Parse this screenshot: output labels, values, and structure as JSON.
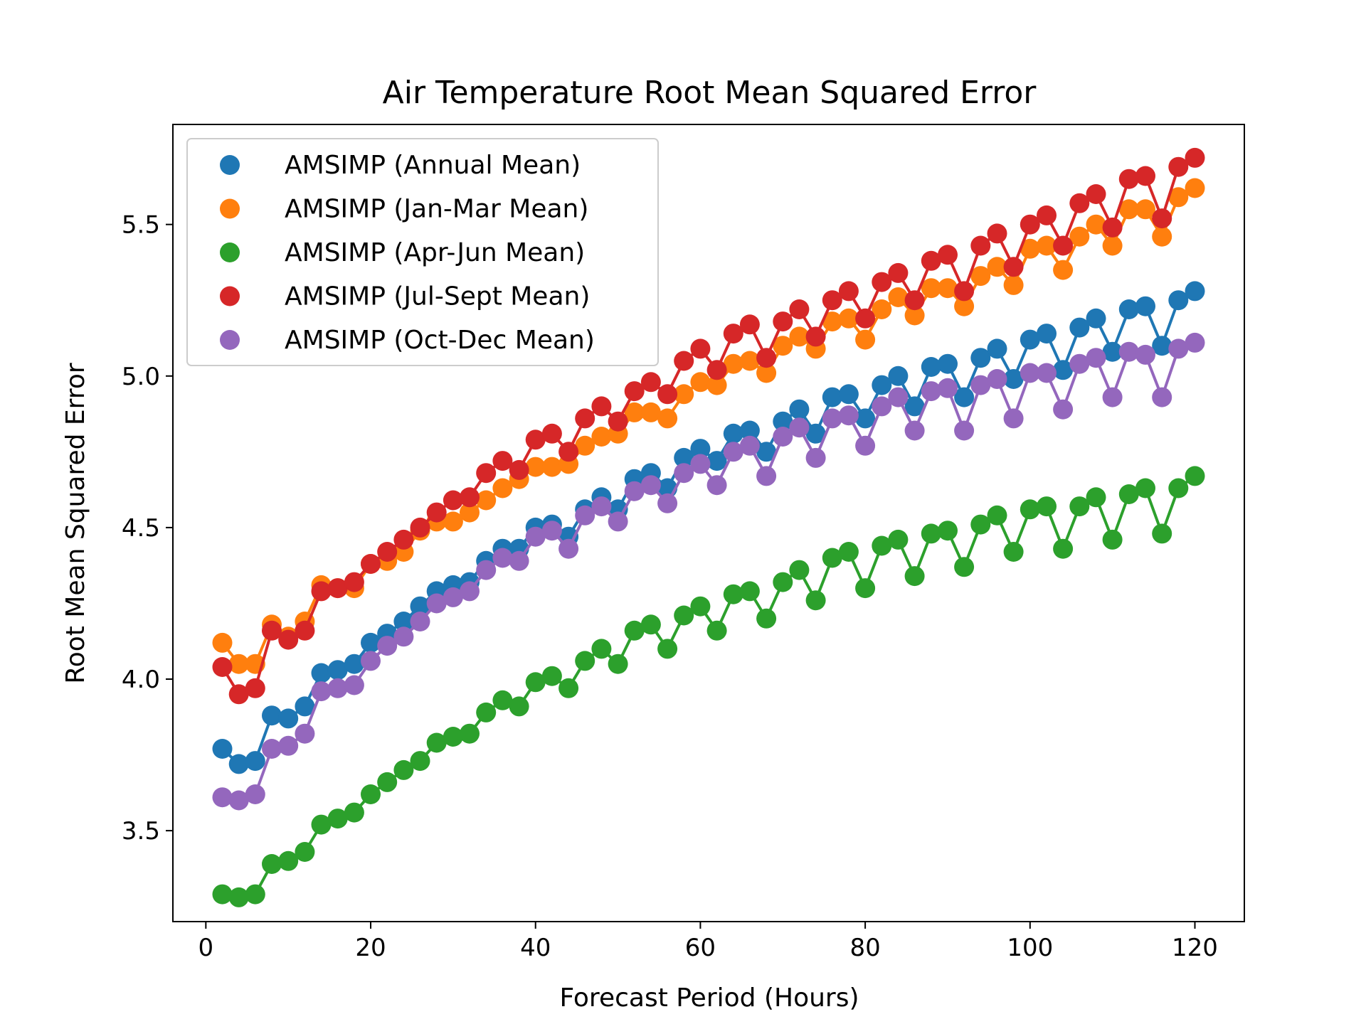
{
  "chart_data": {
    "type": "line",
    "title": "Air Temperature Root Mean Squared Error",
    "xlabel": "Forecast Period (Hours)",
    "ylabel": "Root Mean Squared Error",
    "xlim": [
      -4,
      126
    ],
    "ylim": [
      3.2,
      5.83
    ],
    "xticks": [
      0,
      20,
      40,
      60,
      80,
      100,
      120
    ],
    "yticks": [
      3.5,
      4.0,
      4.5,
      5.0,
      5.5
    ],
    "xtick_labels": [
      "0",
      "20",
      "40",
      "60",
      "80",
      "100",
      "120"
    ],
    "ytick_labels": [
      "3.5",
      "4.0",
      "4.5",
      "5.0",
      "5.5"
    ],
    "grid": false,
    "legend_position": "top-left",
    "x": [
      2,
      4,
      6,
      8,
      10,
      12,
      14,
      16,
      18,
      20,
      22,
      24,
      26,
      28,
      30,
      32,
      34,
      36,
      38,
      40,
      42,
      44,
      46,
      48,
      50,
      52,
      54,
      56,
      58,
      60,
      62,
      64,
      66,
      68,
      70,
      72,
      74,
      76,
      78,
      80,
      82,
      84,
      86,
      88,
      90,
      92,
      94,
      96,
      98,
      100,
      102,
      104,
      106,
      108,
      110,
      112,
      114,
      116,
      118,
      120
    ],
    "series": [
      {
        "name": "AMSIMP (Annual Mean)",
        "color": "#1f77b4",
        "values": [
          3.77,
          3.72,
          3.73,
          3.88,
          3.87,
          3.91,
          4.02,
          4.03,
          4.05,
          4.12,
          4.15,
          4.19,
          4.24,
          4.29,
          4.31,
          4.32,
          4.39,
          4.43,
          4.43,
          4.5,
          4.51,
          4.47,
          4.56,
          4.6,
          4.56,
          4.66,
          4.68,
          4.63,
          4.73,
          4.76,
          4.72,
          4.81,
          4.82,
          4.75,
          4.85,
          4.89,
          4.81,
          4.93,
          4.94,
          4.86,
          4.97,
          5.0,
          4.9,
          5.03,
          5.04,
          4.93,
          5.06,
          5.09,
          4.99,
          5.12,
          5.14,
          5.02,
          5.16,
          5.19,
          5.08,
          5.22,
          5.23,
          5.1,
          5.25,
          5.28
        ]
      },
      {
        "name": "AMSIMP (Jan-Mar Mean)",
        "color": "#ff7f0e",
        "values": [
          4.12,
          4.05,
          4.05,
          4.18,
          4.14,
          4.19,
          4.31,
          4.3,
          4.3,
          4.38,
          4.39,
          4.42,
          4.49,
          4.52,
          4.52,
          4.55,
          4.59,
          4.63,
          4.66,
          4.7,
          4.7,
          4.71,
          4.77,
          4.8,
          4.81,
          4.88,
          4.88,
          4.86,
          4.94,
          4.98,
          4.97,
          5.04,
          5.05,
          5.01,
          5.1,
          5.13,
          5.09,
          5.18,
          5.19,
          5.12,
          5.22,
          5.26,
          5.2,
          5.29,
          5.29,
          5.23,
          5.33,
          5.36,
          5.3,
          5.42,
          5.43,
          5.35,
          5.46,
          5.5,
          5.43,
          5.55,
          5.55,
          5.46,
          5.59,
          5.62
        ]
      },
      {
        "name": "AMSIMP (Apr-Jun Mean)",
        "color": "#2ca02c",
        "values": [
          3.29,
          3.28,
          3.29,
          3.39,
          3.4,
          3.43,
          3.52,
          3.54,
          3.56,
          3.62,
          3.66,
          3.7,
          3.73,
          3.79,
          3.81,
          3.82,
          3.89,
          3.93,
          3.91,
          3.99,
          4.01,
          3.97,
          4.06,
          4.1,
          4.05,
          4.16,
          4.18,
          4.1,
          4.21,
          4.24,
          4.16,
          4.28,
          4.29,
          4.2,
          4.32,
          4.36,
          4.26,
          4.4,
          4.42,
          4.3,
          4.44,
          4.46,
          4.34,
          4.48,
          4.49,
          4.37,
          4.51,
          4.54,
          4.42,
          4.56,
          4.57,
          4.43,
          4.57,
          4.6,
          4.46,
          4.61,
          4.63,
          4.48,
          4.63,
          4.67
        ]
      },
      {
        "name": "AMSIMP (Jul-Sept Mean)",
        "color": "#d62728",
        "values": [
          4.04,
          3.95,
          3.97,
          4.16,
          4.13,
          4.16,
          4.29,
          4.3,
          4.32,
          4.38,
          4.42,
          4.46,
          4.5,
          4.55,
          4.59,
          4.6,
          4.68,
          4.72,
          4.69,
          4.79,
          4.81,
          4.75,
          4.86,
          4.9,
          4.85,
          4.95,
          4.98,
          4.94,
          5.05,
          5.09,
          5.02,
          5.14,
          5.17,
          5.06,
          5.18,
          5.22,
          5.13,
          5.25,
          5.28,
          5.19,
          5.31,
          5.34,
          5.25,
          5.38,
          5.4,
          5.28,
          5.43,
          5.47,
          5.36,
          5.5,
          5.53,
          5.43,
          5.57,
          5.6,
          5.49,
          5.65,
          5.66,
          5.52,
          5.69,
          5.72
        ]
      },
      {
        "name": "AMSIMP (Oct-Dec Mean)",
        "color": "#9467bd",
        "values": [
          3.61,
          3.6,
          3.62,
          3.77,
          3.78,
          3.82,
          3.96,
          3.97,
          3.98,
          4.06,
          4.11,
          4.14,
          4.19,
          4.25,
          4.27,
          4.29,
          4.36,
          4.4,
          4.39,
          4.47,
          4.49,
          4.43,
          4.54,
          4.57,
          4.52,
          4.62,
          4.64,
          4.58,
          4.68,
          4.71,
          4.64,
          4.75,
          4.77,
          4.67,
          4.8,
          4.83,
          4.73,
          4.86,
          4.87,
          4.77,
          4.9,
          4.93,
          4.82,
          4.95,
          4.96,
          4.82,
          4.97,
          4.99,
          4.86,
          5.01,
          5.01,
          4.89,
          5.04,
          5.06,
          4.93,
          5.08,
          5.07,
          4.93,
          5.09,
          5.11
        ]
      }
    ]
  }
}
